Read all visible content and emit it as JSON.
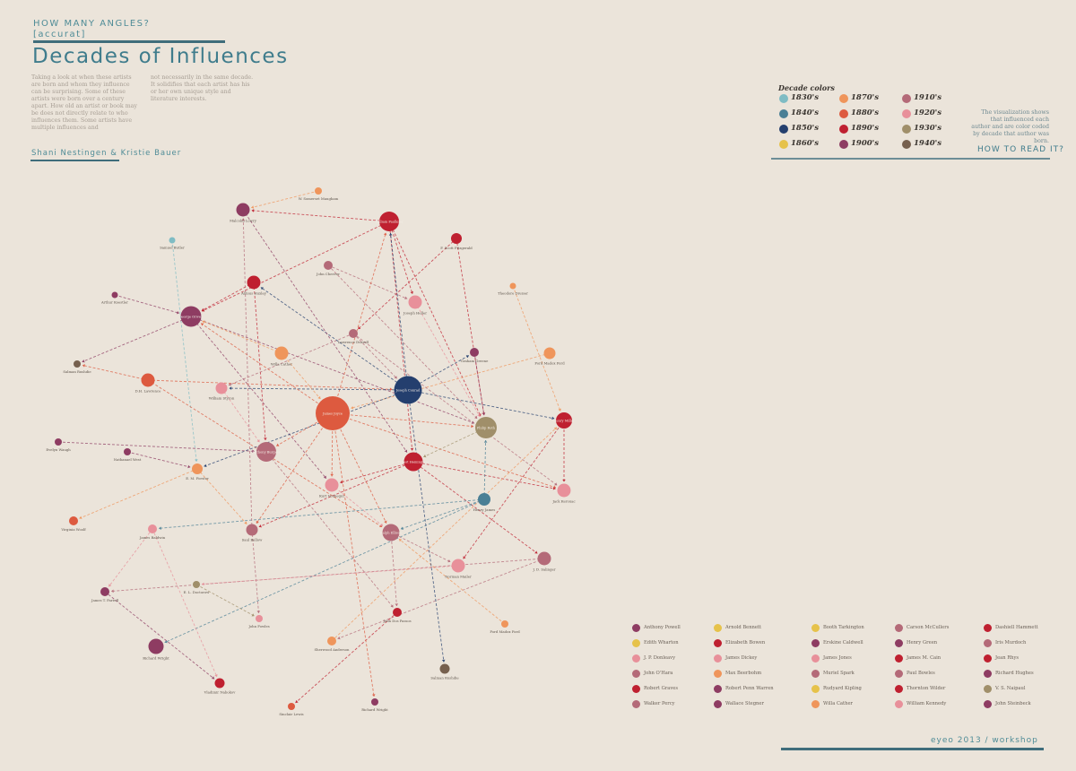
{
  "header": {
    "kicker_line1": "HOW MANY ANGLES?",
    "kicker_line2": "[accurat]",
    "title": "Decades of Influences",
    "intro_col1": "Taking a look at when these artists are born and whom they influence can be surprising. Some of these artists were born over a century apart. How old an artist or book may be does not directly relate to who influences them. Some artists have multiple influences and",
    "intro_col2": "not necessarily in the same decade. It solidifies that each artist has his or her own unique style and literature interests.",
    "authors": "Shani Nestingen & Kristie Bauer"
  },
  "decade_key": {
    "title": "Decade colors",
    "items": [
      {
        "label": "1830's",
        "color": "#7fbcc4"
      },
      {
        "label": "1840's",
        "color": "#4a7f95"
      },
      {
        "label": "1850's",
        "color": "#243f6e"
      },
      {
        "label": "1860's",
        "color": "#e6c24a"
      },
      {
        "label": "1870's",
        "color": "#ef955b"
      },
      {
        "label": "1880's",
        "color": "#dd5a3f"
      },
      {
        "label": "1890's",
        "color": "#bf2030"
      },
      {
        "label": "1900's",
        "color": "#8e3c62"
      },
      {
        "label": "1910's",
        "color": "#b46a78"
      },
      {
        "label": "1920's",
        "color": "#e8909a"
      },
      {
        "label": "1930's",
        "color": "#a08f6a"
      },
      {
        "label": "1940's",
        "color": "#76604e"
      }
    ]
  },
  "how_to_read": {
    "note": "The visualization shows that influenced each author and are color coded by decade that author was born.",
    "link": "HOW TO READ IT?"
  },
  "graph": {
    "nodes": [
      {
        "id": "w_somerset",
        "label": "W. Somerset Maugham",
        "color": "#ef955b"
      },
      {
        "id": "malcolm",
        "label": "Malcolm Lowry",
        "color": "#8e3c62"
      },
      {
        "id": "faulkner",
        "label": "William Faulkner",
        "color": "#bf2030"
      },
      {
        "id": "fitzgerald",
        "label": "F. Scott Fitzgerald",
        "color": "#bf2030"
      },
      {
        "id": "samuel",
        "label": "Samuel Butler",
        "color": "#7fbcc4"
      },
      {
        "id": "cheever",
        "label": "John Cheever",
        "color": "#b46a78"
      },
      {
        "id": "huxley",
        "label": "Aldous Huxley",
        "color": "#bf2030"
      },
      {
        "id": "dreiser",
        "label": "Theodore Dreiser",
        "color": "#ef955b"
      },
      {
        "id": "kenedie",
        "label": "Arthur Koestler",
        "color": "#8e3c62"
      },
      {
        "id": "bellow",
        "label": "Joseph Heller",
        "color": "#e8909a"
      },
      {
        "id": "orwell",
        "label": "George Orwell",
        "color": "#8e3c62"
      },
      {
        "id": "durrell",
        "label": "Lawrence Durrell",
        "color": "#b46a78"
      },
      {
        "id": "greene",
        "label": "Graham Greene",
        "color": "#8e3c62"
      },
      {
        "id": "ford",
        "label": "Ford Madox Ford",
        "color": "#ef955b"
      },
      {
        "id": "rushdie",
        "label": "Salman Rushdie",
        "color": "#76604e"
      },
      {
        "id": "dh",
        "label": "D.H. Lawrence",
        "color": "#dd5a3f"
      },
      {
        "id": "wilder",
        "label": "Willa Cather",
        "color": "#ef955b"
      },
      {
        "id": "joyce",
        "label": "James Joyce",
        "color": "#dd5a3f"
      },
      {
        "id": "conrad",
        "label": "Joseph Conrad",
        "color": "#243f6e"
      },
      {
        "id": "burroughs",
        "label": "William Styron",
        "color": "#e8909a"
      },
      {
        "id": "philip",
        "label": "Philip Roth",
        "color": "#a08f6a"
      },
      {
        "id": "miller",
        "label": "Henry Miller",
        "color": "#bf2030"
      },
      {
        "id": "evelyn",
        "label": "Evelyn Waugh",
        "color": "#8e3c62"
      },
      {
        "id": "nathanael",
        "label": "Nathanael West",
        "color": "#8e3c62"
      },
      {
        "id": "morrison",
        "label": "Anthony Burgess",
        "color": "#b46a78"
      },
      {
        "id": "hemingway",
        "label": "Ernest Hemingway",
        "color": "#bf2030"
      },
      {
        "id": "forster",
        "label": "E. M. Forster",
        "color": "#ef955b"
      },
      {
        "id": "vonnegut",
        "label": "Kurt Vonnegut",
        "color": "#e8909a"
      },
      {
        "id": "kerouac",
        "label": "Jack Kerouac",
        "color": "#e8909a"
      },
      {
        "id": "henry_james",
        "label": "Henry James",
        "color": "#4a7f95"
      },
      {
        "id": "woolf",
        "label": "Virginia Woolf",
        "color": "#dd5a3f"
      },
      {
        "id": "baldwin",
        "label": "James Baldwin",
        "color": "#e8909a"
      },
      {
        "id": "saul",
        "label": "Saul Bellow",
        "color": "#b46a78"
      },
      {
        "id": "ellison",
        "label": "Ralph Ellison",
        "color": "#b46a78"
      },
      {
        "id": "salinger",
        "label": "J. D. Salinger",
        "color": "#b46a78"
      },
      {
        "id": "mailer",
        "label": "Norman Mailer",
        "color": "#e8909a"
      },
      {
        "id": "doctorow",
        "label": "E. L. Doctorow",
        "color": "#a08f6a"
      },
      {
        "id": "farrell",
        "label": "James T. Farrell",
        "color": "#8e3c62"
      },
      {
        "id": "passos",
        "label": "John Dos Passos",
        "color": "#bf2030"
      },
      {
        "id": "john_fowles",
        "label": "John Fowles",
        "color": "#e8909a"
      },
      {
        "id": "fordmadox2",
        "label": "Ford Madox Ford",
        "color": "#ef955b"
      },
      {
        "id": "wright",
        "label": "Richard Wright",
        "color": "#8e3c62"
      },
      {
        "id": "anderson",
        "label": "Sherwood Anderson",
        "color": "#ef955b"
      },
      {
        "id": "nabokov",
        "label": "Vladimir Nabokov",
        "color": "#bf2030"
      },
      {
        "id": "lewis",
        "label": "Sinclair Lewis",
        "color": "#dd5a3f"
      },
      {
        "id": "rich_wright",
        "label": "Richard Wright",
        "color": "#8e3c62"
      },
      {
        "id": "rushdie2",
        "label": "Salman Rushdie",
        "color": "#76604e"
      }
    ],
    "edges": [
      [
        "w_somerset",
        "malcolm"
      ],
      [
        "faulkner",
        "malcolm"
      ],
      [
        "faulkner",
        "orwell"
      ],
      [
        "faulkner",
        "bellow"
      ],
      [
        "faulkner",
        "philip"
      ],
      [
        "faulkner",
        "hemingway"
      ],
      [
        "fitzgerald",
        "philip"
      ],
      [
        "fitzgerald",
        "durrell"
      ],
      [
        "samuel",
        "forster"
      ],
      [
        "cheever",
        "bellow"
      ],
      [
        "huxley",
        "orwell"
      ],
      [
        "huxley",
        "morrison"
      ],
      [
        "dreiser",
        "miller"
      ],
      [
        "kenedie",
        "orwell"
      ],
      [
        "orwell",
        "rushdie"
      ],
      [
        "orwell",
        "philip"
      ],
      [
        "orwell",
        "vonnegut"
      ],
      [
        "durrell",
        "conrad"
      ],
      [
        "durrell",
        "burroughs"
      ],
      [
        "greene",
        "greene"
      ],
      [
        "ford",
        "joyce"
      ],
      [
        "dh",
        "rushdie"
      ],
      [
        "dh",
        "conrad"
      ],
      [
        "dh",
        "ellison"
      ],
      [
        "joyce",
        "morrison"
      ],
      [
        "joyce",
        "orwell"
      ],
      [
        "joyce",
        "faulkner"
      ],
      [
        "joyce",
        "philip"
      ],
      [
        "joyce",
        "vonnegut"
      ],
      [
        "joyce",
        "ellison"
      ],
      [
        "joyce",
        "saul"
      ],
      [
        "joyce",
        "kerouac"
      ],
      [
        "conrad",
        "forster"
      ],
      [
        "conrad",
        "burroughs"
      ],
      [
        "conrad",
        "greene"
      ],
      [
        "conrad",
        "faulkner"
      ],
      [
        "conrad",
        "huxley"
      ],
      [
        "conrad",
        "miller"
      ],
      [
        "philip",
        "hemingway"
      ],
      [
        "miller",
        "mailer"
      ],
      [
        "miller",
        "kerouac"
      ],
      [
        "evelyn",
        "morrison"
      ],
      [
        "nathanael",
        "forster"
      ],
      [
        "hemingway",
        "vonnegut"
      ],
      [
        "hemingway",
        "salinger"
      ],
      [
        "hemingway",
        "kerouac"
      ],
      [
        "hemingway",
        "saul"
      ],
      [
        "forster",
        "woolf"
      ],
      [
        "henry_james",
        "baldwin"
      ],
      [
        "henry_james",
        "ellison"
      ],
      [
        "henry_james",
        "philip"
      ],
      [
        "henry_james",
        "wright"
      ],
      [
        "baldwin",
        "nabokov"
      ],
      [
        "baldwin",
        "farrell"
      ],
      [
        "saul",
        "malcolm"
      ],
      [
        "saul",
        "john_fowles"
      ],
      [
        "ellison",
        "mailer"
      ],
      [
        "ellison",
        "passos"
      ],
      [
        "salinger",
        "farrell"
      ],
      [
        "salinger",
        "anderson"
      ],
      [
        "mailer",
        "doctorow"
      ],
      [
        "doctorow",
        "john_fowles"
      ],
      [
        "passos",
        "lewis"
      ],
      [
        "farrell",
        "nabokov"
      ],
      [
        "anderson",
        "miller"
      ],
      [
        "fordmadox2",
        "ellison"
      ],
      [
        "wilder",
        "orwell"
      ],
      [
        "wilder",
        "joyce"
      ],
      [
        "malcolm",
        "hemingway"
      ],
      [
        "cheever",
        "philip"
      ],
      [
        "durrell",
        "kerouac"
      ],
      [
        "greene",
        "philip"
      ],
      [
        "burroughs",
        "morrison"
      ],
      [
        "morrison",
        "passos"
      ],
      [
        "vonnegut",
        "ellison"
      ],
      [
        "joyce",
        "rich_wright"
      ],
      [
        "conrad",
        "rushdie2"
      ],
      [
        "forster",
        "saul"
      ],
      [
        "bellow",
        "philip"
      ]
    ]
  },
  "legend": {
    "items": [
      {
        "label": "Anthony Powell",
        "color": "#8e3c62"
      },
      {
        "label": "Edith Wharton",
        "color": "#e6c24a"
      },
      {
        "label": "J. P. Donleavy",
        "color": "#e8909a"
      },
      {
        "label": "John O'Hara",
        "color": "#b46a78"
      },
      {
        "label": "Robert Graves",
        "color": "#bf2030"
      },
      {
        "label": "Walker Percy",
        "color": "#b46a78"
      },
      {
        "label": "Arnold Bennett",
        "color": "#e6c24a"
      },
      {
        "label": "Elizabeth Bowen",
        "color": "#bf2030"
      },
      {
        "label": "James Dickey",
        "color": "#e8909a"
      },
      {
        "label": "Max Beerbohm",
        "color": "#ef955b"
      },
      {
        "label": "Robert Penn Warren",
        "color": "#8e3c62"
      },
      {
        "label": "Wallace Stegner",
        "color": "#8e3c62"
      },
      {
        "label": "Booth Tarkington",
        "color": "#e6c24a"
      },
      {
        "label": "Erskine Caldwell",
        "color": "#8e3c62"
      },
      {
        "label": "James Jones",
        "color": "#e8909a"
      },
      {
        "label": "Muriel Spark",
        "color": "#b46a78"
      },
      {
        "label": "Rudyard Kipling",
        "color": "#e6c24a"
      },
      {
        "label": "Willa Cather",
        "color": "#ef955b"
      },
      {
        "label": "Carson McCullers",
        "color": "#b46a78"
      },
      {
        "label": "Henry Green",
        "color": "#8e3c62"
      },
      {
        "label": "James M. Cain",
        "color": "#bf2030"
      },
      {
        "label": "Paul Bowles",
        "color": "#b46a78"
      },
      {
        "label": "Thornton Wilder",
        "color": "#bf2030"
      },
      {
        "label": "William Kennedy",
        "color": "#e8909a"
      },
      {
        "label": "Dashiell Hammett",
        "color": "#bf2030"
      },
      {
        "label": "Iris Murdoch",
        "color": "#b46a78"
      },
      {
        "label": "Jean Rhys",
        "color": "#bf2030"
      },
      {
        "label": "Richard Hughes",
        "color": "#8e3c62"
      },
      {
        "label": "V. S. Naipaul",
        "color": "#a08f6a"
      },
      {
        "label": "John Steinbeck",
        "color": "#8e3c62"
      }
    ]
  },
  "footer": {
    "text": "eyeo 2013 / workshop"
  }
}
